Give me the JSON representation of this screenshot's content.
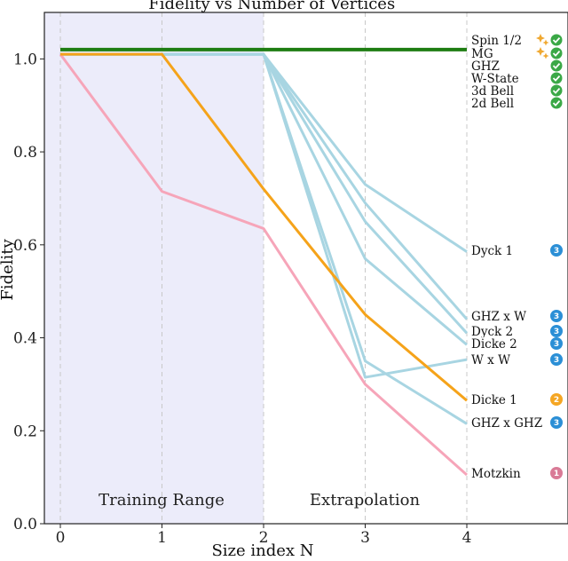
{
  "chart_data": {
    "type": "line",
    "title": "Fidelity vs Number of Vertices",
    "xlabel": "Size index N",
    "ylabel": "Fidelity",
    "xlim": [
      -0.15,
      4.95
    ],
    "ylim": [
      0.0,
      1.1
    ],
    "xticks": [
      0,
      1,
      2,
      3,
      4
    ],
    "yticks": [
      0.0,
      0.2,
      0.4,
      0.6,
      0.8,
      1.0
    ],
    "tick_labels_x": [
      "0",
      "1",
      "2",
      "3",
      "4"
    ],
    "tick_labels_y": [
      "0.0",
      "0.2",
      "0.4",
      "0.6",
      "0.8",
      "1.0"
    ],
    "regions": [
      {
        "label": "Training Range",
        "x_from": -0.15,
        "x_to": 2.0,
        "shaded": true
      },
      {
        "label": "Extrapolation",
        "x_from": 2.0,
        "x_to": 4.95,
        "shaded": false
      }
    ],
    "grid": "vertical dashed",
    "series": [
      {
        "name": "Spin 1/2",
        "x": [
          0,
          1,
          2,
          3,
          4
        ],
        "values": [
          1.02,
          1.02,
          1.02,
          1.02,
          1.02
        ],
        "color": "#1e7d12",
        "badge": "sparkle",
        "width": 4
      },
      {
        "name": "MG",
        "x": [
          0,
          1,
          2,
          3,
          4
        ],
        "values": [
          1.02,
          1.02,
          1.02,
          1.02,
          1.02
        ],
        "color": "#1e7d12",
        "badge": "sparkle",
        "width": 4
      },
      {
        "name": "GHZ",
        "x": [
          0,
          1,
          2,
          3,
          4
        ],
        "values": [
          1.02,
          1.02,
          1.02,
          1.02,
          1.02
        ],
        "color": "#1e7d12",
        "badge": "check",
        "width": 4
      },
      {
        "name": "W-State",
        "x": [
          0,
          1,
          2,
          3,
          4
        ],
        "values": [
          1.02,
          1.02,
          1.02,
          1.02,
          1.02
        ],
        "color": "#1e7d12",
        "badge": "check",
        "width": 4
      },
      {
        "name": "3d Bell",
        "x": [
          0,
          1,
          2,
          3,
          4
        ],
        "values": [
          1.02,
          1.02,
          1.02,
          1.02,
          1.02
        ],
        "color": "#1e7d12",
        "badge": "check",
        "width": 4
      },
      {
        "name": "2d Bell",
        "x": [
          0,
          1,
          2,
          3,
          4
        ],
        "values": [
          1.02,
          1.02,
          1.02,
          1.02,
          1.02
        ],
        "color": "#1e7d12",
        "badge": "check",
        "width": 4
      },
      {
        "name": "Dyck 1",
        "x": [
          2,
          3,
          4
        ],
        "values": [
          1.01,
          0.73,
          0.585
        ],
        "color": "#a8d5e2",
        "badge": "3",
        "width": 3
      },
      {
        "name": "GHZ x W",
        "x": [
          2,
          3,
          4
        ],
        "values": [
          1.01,
          0.69,
          0.44
        ],
        "color": "#a8d5e2",
        "badge": "3",
        "width": 3
      },
      {
        "name": "Dyck 2",
        "x": [
          2,
          3,
          4
        ],
        "values": [
          1.01,
          0.65,
          0.41
        ],
        "color": "#a8d5e2",
        "badge": "3",
        "width": 3
      },
      {
        "name": "Dicke 2",
        "x": [
          2,
          3,
          4
        ],
        "values": [
          1.01,
          0.57,
          0.385
        ],
        "color": "#a8d5e2",
        "badge": "3",
        "width": 3
      },
      {
        "name": "W x W",
        "x": [
          2,
          3,
          4
        ],
        "values": [
          1.01,
          0.315,
          0.353
        ],
        "color": "#a8d5e2",
        "badge": "3",
        "width": 3
      },
      {
        "name": "GHZ x GHZ",
        "x": [
          2,
          3,
          4
        ],
        "values": [
          1.01,
          0.35,
          0.215
        ],
        "color": "#a8d5e2",
        "badge": "3",
        "width": 3
      },
      {
        "name": "Dicke 1",
        "x": [
          0,
          1,
          2,
          3,
          4
        ],
        "values": [
          1.01,
          1.01,
          0.72,
          0.45,
          0.265
        ],
        "color": "#f5a31a",
        "badge": "2",
        "width": 3
      },
      {
        "name": "Motzkin",
        "x": [
          0,
          1,
          2,
          3,
          4
        ],
        "values": [
          1.01,
          0.715,
          0.635,
          0.3,
          0.105
        ],
        "color": "#f6a5b9",
        "badge": "1",
        "width": 3
      }
    ],
    "badge_colors": {
      "check": "#3aa846",
      "sparkle": "#f0a830",
      "1": "#d97a96",
      "2": "#f5a623",
      "3": "#2b8fd6"
    }
  }
}
